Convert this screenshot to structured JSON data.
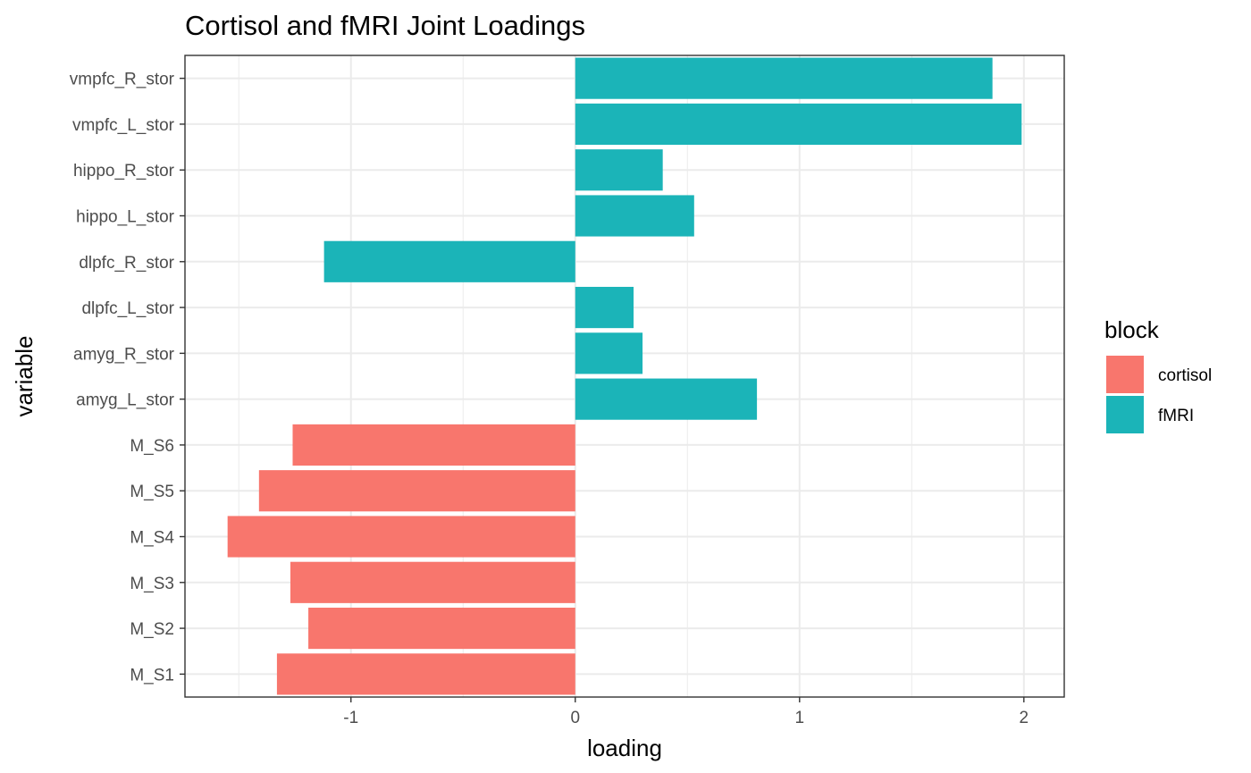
{
  "chart_data": {
    "type": "bar",
    "orientation": "horizontal",
    "title": "Cortisol and fMRI Joint Loadings",
    "xlabel": "loading",
    "ylabel": "variable",
    "xlim": [
      -1.74,
      2.18
    ],
    "x_ticks": [
      -1,
      0,
      1,
      2
    ],
    "x_tick_labels": [
      "-1",
      "0",
      "1",
      "2"
    ],
    "grid": true,
    "legend_title": "block",
    "legend_position": "right",
    "blocks": [
      {
        "name": "cortisol",
        "color": "#f8766d"
      },
      {
        "name": "fMRI",
        "color": "#1bb4b8"
      }
    ],
    "categories": [
      "vmpfc_R_stor",
      "vmpfc_L_stor",
      "hippo_R_stor",
      "hippo_L_stor",
      "dlpfc_R_stor",
      "dlpfc_L_stor",
      "amyg_R_stor",
      "amyg_L_stor",
      "M_S6",
      "M_S5",
      "M_S4",
      "M_S3",
      "M_S2",
      "M_S1"
    ],
    "values": [
      1.86,
      1.99,
      0.39,
      0.53,
      -1.12,
      0.26,
      0.3,
      0.81,
      -1.26,
      -1.41,
      -1.55,
      -1.27,
      -1.19,
      -1.33
    ],
    "block_of_category": [
      "fMRI",
      "fMRI",
      "fMRI",
      "fMRI",
      "fMRI",
      "fMRI",
      "fMRI",
      "fMRI",
      "cortisol",
      "cortisol",
      "cortisol",
      "cortisol",
      "cortisol",
      "cortisol"
    ]
  }
}
